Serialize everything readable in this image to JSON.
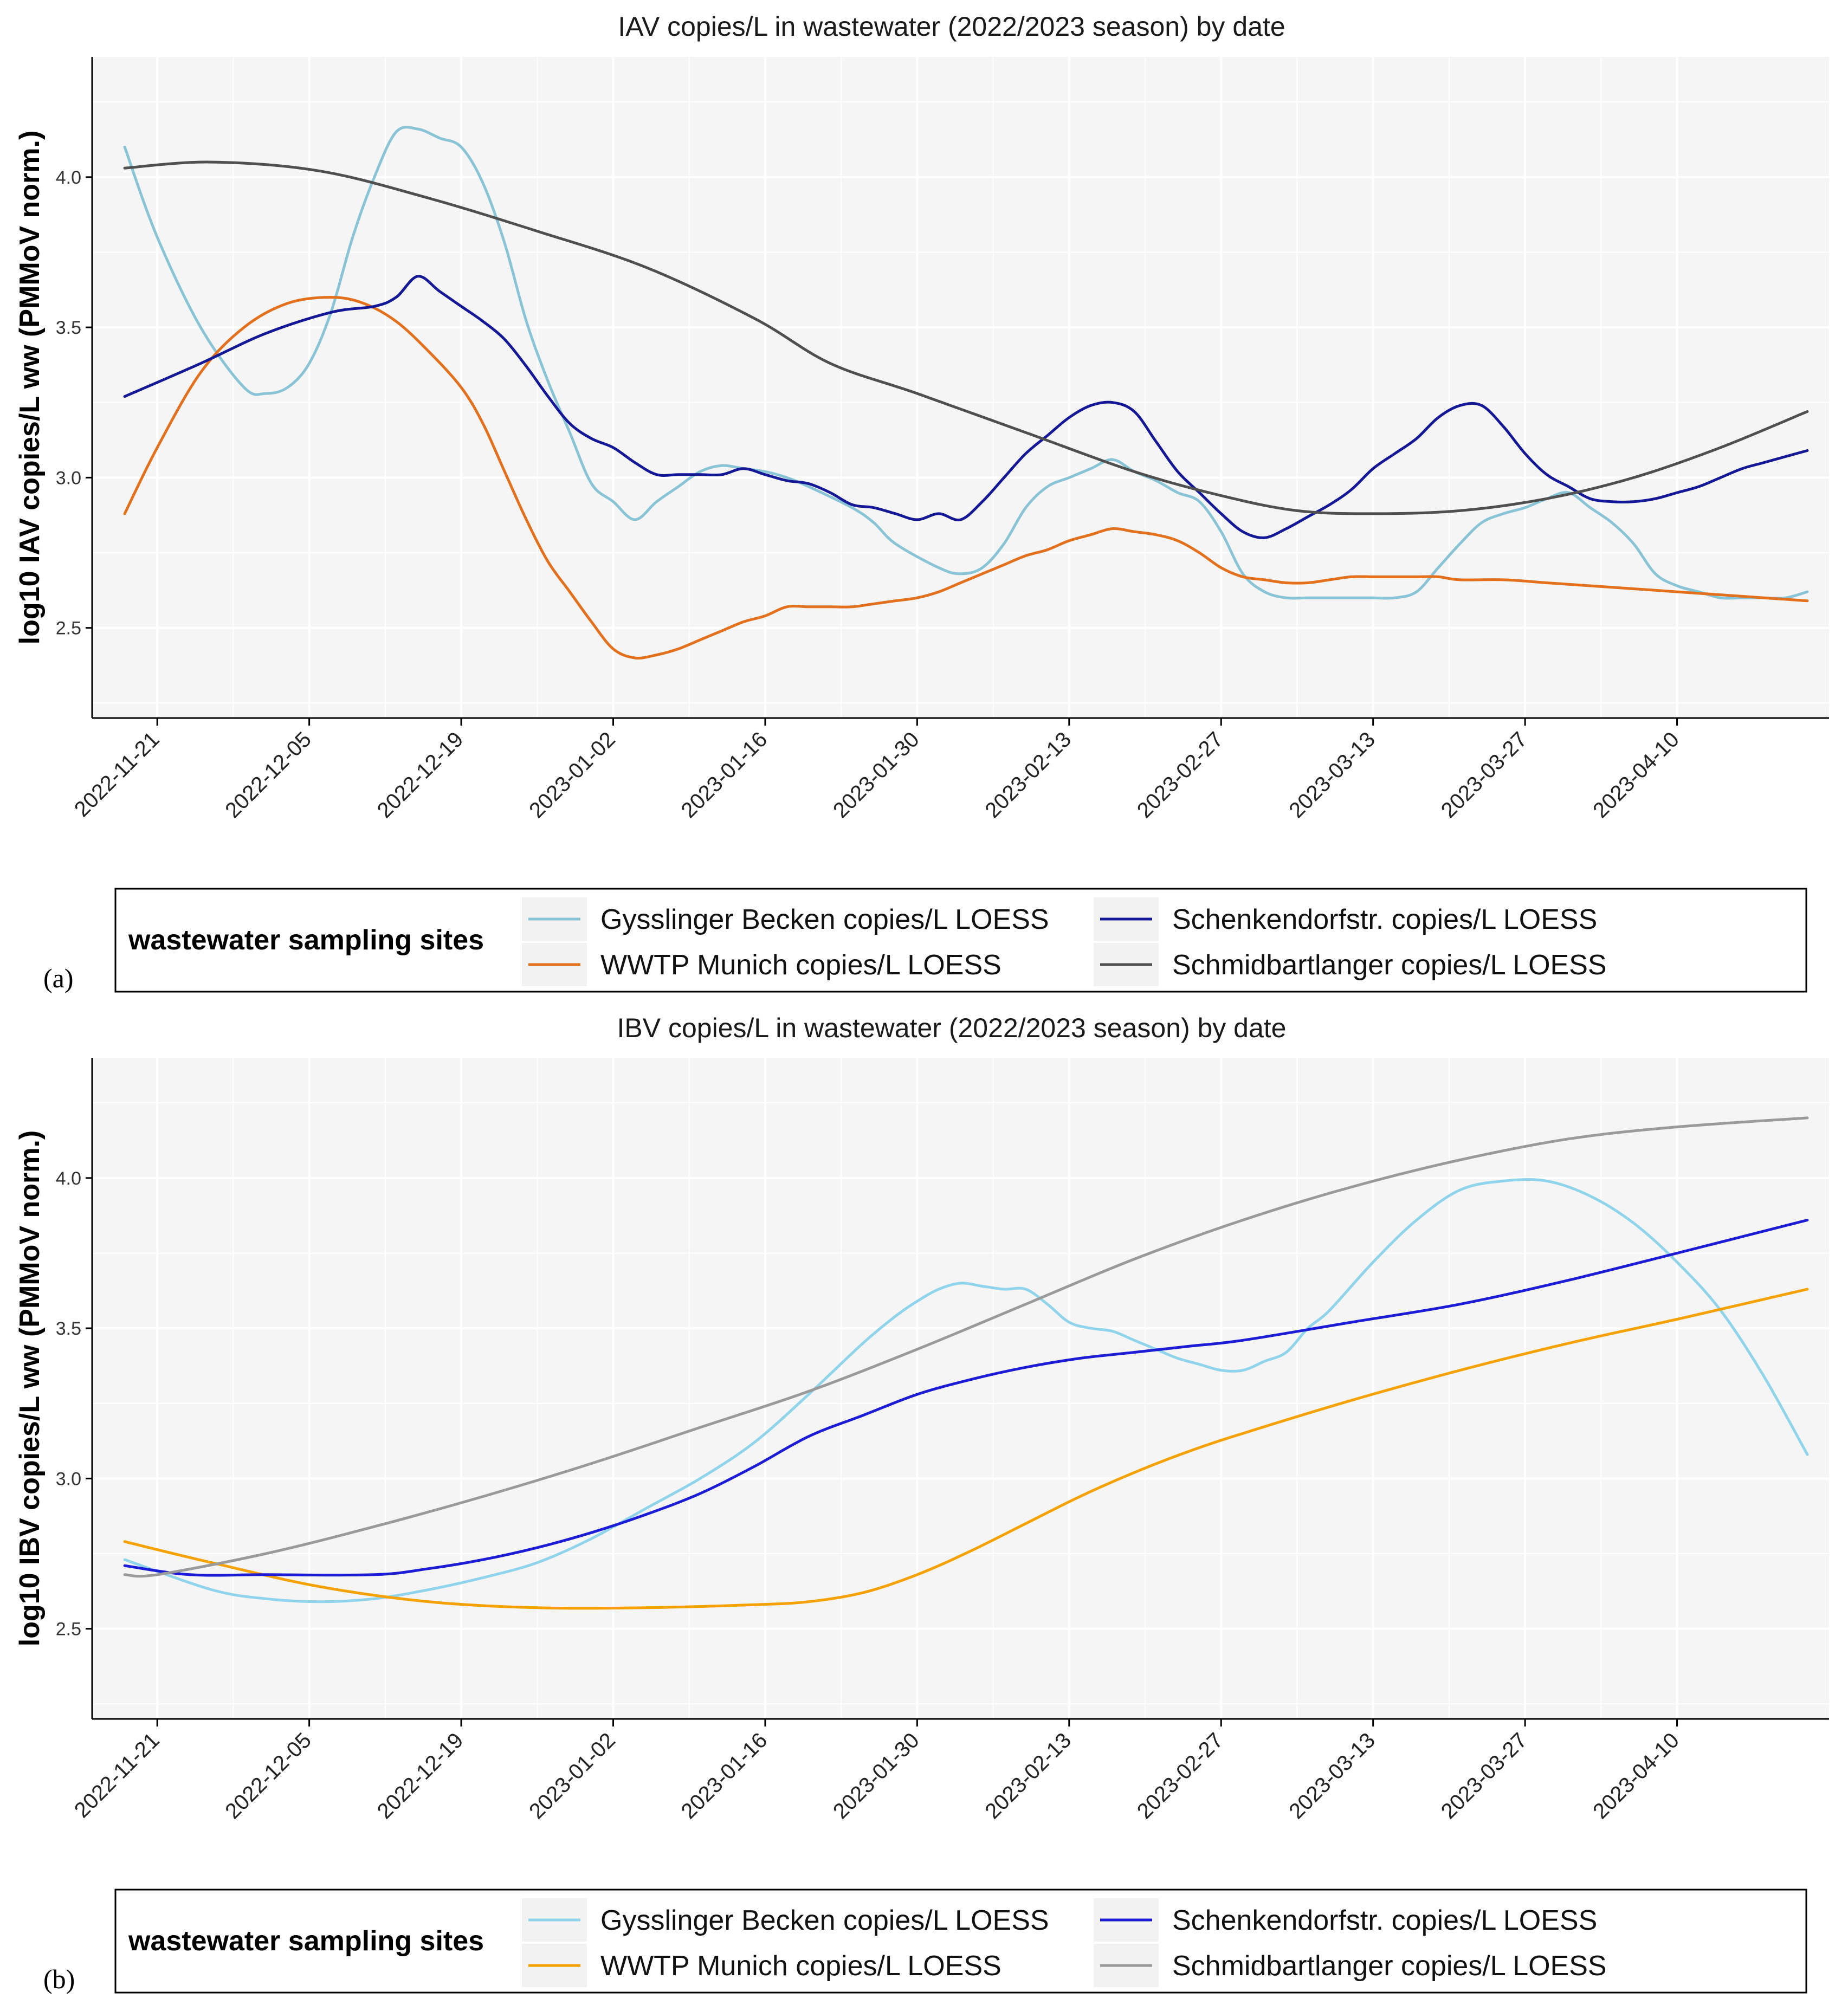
{
  "chart_data": [
    {
      "type": "line",
      "panel_label": "(a)",
      "title": "IAV copies/L in wastewater (2022/2023 season) by date",
      "xlabel": "",
      "ylabel": "log10 IAV copies/L ww (PMMoV norm.)",
      "x_ticks": [
        "2022-11-21",
        "2022-12-05",
        "2022-12-19",
        "2023-01-02",
        "2023-01-16",
        "2023-01-30",
        "2023-02-13",
        "2023-02-27",
        "2023-03-13",
        "2023-03-27",
        "2023-04-10"
      ],
      "y_ticks": [
        "2.5",
        "3.0",
        "3.5",
        "4.0"
      ],
      "xlim_days": [
        -6,
        154
      ],
      "ylim": [
        2.2,
        4.4
      ],
      "grid": true,
      "legend": {
        "title": "wastewater sampling sites",
        "position": "bottom",
        "entries": [
          {
            "name": "Gysslinger Becken copies/L LOESS",
            "color": "#89c4d6"
          },
          {
            "name": "Schenkendorfstr. copies/L LOESS",
            "color": "#141896"
          },
          {
            "name": "WWTP Munich copies/L LOESS",
            "color": "#e2701c"
          },
          {
            "name": "Schmidbartlanger copies/L LOESS",
            "color": "#4f4f4f"
          }
        ]
      },
      "series": [
        {
          "name": "Gysslinger Becken copies/L LOESS",
          "color": "#89c4d6",
          "x": [
            -3,
            0,
            4,
            8,
            10,
            12,
            14,
            16,
            18,
            20,
            22,
            24,
            26,
            28,
            30,
            32,
            34,
            36,
            38,
            40,
            42,
            44,
            46,
            48,
            50,
            52,
            54,
            56,
            58,
            60,
            64,
            66,
            68,
            72,
            74,
            76,
            78,
            80,
            82,
            84,
            86,
            88,
            90,
            92,
            94,
            96,
            98,
            100,
            102,
            104,
            106,
            108,
            110,
            112,
            114,
            116,
            118,
            120,
            122,
            124,
            126,
            128,
            130,
            132,
            134,
            136,
            138,
            140,
            142,
            144,
            146,
            148,
            150,
            152
          ],
          "y": [
            4.1,
            3.8,
            3.5,
            3.3,
            3.28,
            3.3,
            3.38,
            3.55,
            3.8,
            4.0,
            4.15,
            4.16,
            4.13,
            4.1,
            3.98,
            3.78,
            3.52,
            3.32,
            3.15,
            2.98,
            2.92,
            2.86,
            2.92,
            2.97,
            3.02,
            3.04,
            3.03,
            3.02,
            3.0,
            2.97,
            2.9,
            2.85,
            2.78,
            2.7,
            2.68,
            2.7,
            2.78,
            2.9,
            2.97,
            3.0,
            3.03,
            3.06,
            3.02,
            2.99,
            2.95,
            2.92,
            2.82,
            2.68,
            2.62,
            2.6,
            2.6,
            2.6,
            2.6,
            2.6,
            2.6,
            2.62,
            2.7,
            2.78,
            2.85,
            2.88,
            2.9,
            2.93,
            2.95,
            2.9,
            2.85,
            2.78,
            2.68,
            2.64,
            2.62,
            2.6,
            2.6,
            2.6,
            2.6,
            2.62
          ]
        },
        {
          "name": "WWTP Munich copies/L LOESS",
          "color": "#e2701c",
          "x": [
            -3,
            0,
            4,
            8,
            12,
            16,
            19,
            22,
            25,
            28,
            30,
            32,
            34,
            36,
            38,
            40,
            42,
            44,
            46,
            48,
            50,
            52,
            54,
            56,
            58,
            60,
            62,
            64,
            66,
            68,
            70,
            72,
            74,
            76,
            78,
            80,
            82,
            84,
            86,
            88,
            90,
            92,
            94,
            96,
            98,
            100,
            102,
            104,
            106,
            108,
            110,
            112,
            114,
            116,
            118,
            120,
            124,
            128,
            132,
            136,
            140,
            144,
            148,
            152
          ],
          "y": [
            2.88,
            3.1,
            3.35,
            3.5,
            3.58,
            3.6,
            3.58,
            3.52,
            3.42,
            3.3,
            3.18,
            3.02,
            2.86,
            2.72,
            2.62,
            2.52,
            2.43,
            2.4,
            2.41,
            2.43,
            2.46,
            2.49,
            2.52,
            2.54,
            2.57,
            2.57,
            2.57,
            2.57,
            2.58,
            2.59,
            2.6,
            2.62,
            2.65,
            2.68,
            2.71,
            2.74,
            2.76,
            2.79,
            2.81,
            2.83,
            2.82,
            2.81,
            2.79,
            2.75,
            2.7,
            2.67,
            2.66,
            2.65,
            2.65,
            2.66,
            2.67,
            2.67,
            2.67,
            2.67,
            2.67,
            2.66,
            2.66,
            2.65,
            2.64,
            2.63,
            2.62,
            2.61,
            2.6,
            2.59
          ]
        },
        {
          "name": "Schenkendorfstr. copies/L LOESS",
          "color": "#141896",
          "x": [
            -3,
            4,
            10,
            16,
            20,
            22,
            24,
            26,
            28,
            30,
            32,
            34,
            36,
            38,
            40,
            42,
            44,
            46,
            48,
            50,
            52,
            54,
            56,
            58,
            60,
            62,
            64,
            66,
            68,
            70,
            72,
            74,
            76,
            78,
            80,
            82,
            84,
            86,
            88,
            90,
            92,
            94,
            96,
            98,
            100,
            102,
            104,
            106,
            108,
            110,
            112,
            114,
            116,
            118,
            120,
            122,
            124,
            126,
            128,
            130,
            132,
            134,
            136,
            138,
            140,
            142,
            144,
            146,
            148,
            150,
            152
          ],
          "y": [
            3.27,
            3.38,
            3.48,
            3.55,
            3.57,
            3.6,
            3.67,
            3.62,
            3.57,
            3.52,
            3.46,
            3.37,
            3.27,
            3.18,
            3.13,
            3.1,
            3.05,
            3.01,
            3.01,
            3.01,
            3.01,
            3.03,
            3.01,
            2.99,
            2.98,
            2.95,
            2.91,
            2.9,
            2.88,
            2.86,
            2.88,
            2.86,
            2.92,
            3.0,
            3.08,
            3.14,
            3.2,
            3.24,
            3.25,
            3.22,
            3.12,
            3.02,
            2.95,
            2.88,
            2.82,
            2.8,
            2.83,
            2.87,
            2.91,
            2.96,
            3.03,
            3.08,
            3.13,
            3.2,
            3.24,
            3.24,
            3.17,
            3.08,
            3.01,
            2.97,
            2.93,
            2.92,
            2.92,
            2.93,
            2.95,
            2.97,
            3.0,
            3.03,
            3.05,
            3.07,
            3.09
          ]
        },
        {
          "name": "Schmidbartlanger copies/L LOESS",
          "color": "#4f4f4f",
          "x": [
            -3,
            5,
            15,
            25,
            35,
            45,
            55,
            62,
            70,
            80,
            90,
            98,
            105,
            112,
            120,
            128,
            136,
            144,
            152
          ],
          "y": [
            4.03,
            4.05,
            4.02,
            3.93,
            3.82,
            3.7,
            3.53,
            3.38,
            3.28,
            3.15,
            3.02,
            2.94,
            2.89,
            2.88,
            2.89,
            2.93,
            3.0,
            3.1,
            3.22
          ]
        }
      ]
    },
    {
      "type": "line",
      "panel_label": "(b)",
      "title": "IBV copies/L in wastewater (2022/2023 season) by date",
      "xlabel": "",
      "ylabel": "log10 IBV copies/L ww (PMMoV norm.)",
      "x_ticks": [
        "2022-11-21",
        "2022-12-05",
        "2022-12-19",
        "2023-01-02",
        "2023-01-16",
        "2023-01-30",
        "2023-02-13",
        "2023-02-27",
        "2023-03-13",
        "2023-03-27",
        "2023-04-10"
      ],
      "y_ticks": [
        "2.5",
        "3.0",
        "3.5",
        "4.0"
      ],
      "xlim_days": [
        -6,
        154
      ],
      "ylim": [
        2.2,
        4.4
      ],
      "grid": true,
      "legend": {
        "title": "wastewater sampling sites",
        "position": "bottom",
        "entries": [
          {
            "name": "Gysslinger Becken copies/L LOESS",
            "color": "#8fd4ea"
          },
          {
            "name": "Schenkendorfstr. copies/L LOESS",
            "color": "#1c1cd6"
          },
          {
            "name": "WWTP Munich copies/L LOESS",
            "color": "#f5a200"
          },
          {
            "name": "Schmidbartlanger copies/L LOESS",
            "color": "#9a9a9a"
          }
        ]
      },
      "series": [
        {
          "name": "Gysslinger Becken copies/L LOESS",
          "color": "#8fd4ea",
          "x": [
            -3,
            5,
            10,
            15,
            20,
            25,
            30,
            35,
            40,
            45,
            50,
            55,
            60,
            65,
            68,
            70,
            72,
            74,
            76,
            78,
            80,
            82,
            84,
            86,
            88,
            90,
            92,
            94,
            96,
            98,
            100,
            102,
            104,
            106,
            108,
            112,
            116,
            120,
            124,
            128,
            132,
            136,
            140,
            144,
            148,
            152
          ],
          "y": [
            2.73,
            2.63,
            2.6,
            2.59,
            2.6,
            2.63,
            2.67,
            2.72,
            2.8,
            2.9,
            3.0,
            3.12,
            3.28,
            3.45,
            3.54,
            3.59,
            3.63,
            3.65,
            3.64,
            3.63,
            3.63,
            3.58,
            3.52,
            3.5,
            3.49,
            3.46,
            3.43,
            3.4,
            3.38,
            3.36,
            3.36,
            3.39,
            3.42,
            3.5,
            3.56,
            3.72,
            3.86,
            3.96,
            3.99,
            3.99,
            3.94,
            3.85,
            3.72,
            3.56,
            3.34,
            3.08
          ]
        },
        {
          "name": "WWTP Munich copies/L LOESS",
          "color": "#f5a200",
          "x": [
            -3,
            5,
            15,
            25,
            35,
            45,
            55,
            60,
            65,
            70,
            75,
            80,
            85,
            90,
            95,
            100,
            110,
            120,
            130,
            140,
            152
          ],
          "y": [
            2.79,
            2.72,
            2.64,
            2.59,
            2.57,
            2.57,
            2.58,
            2.59,
            2.62,
            2.68,
            2.76,
            2.85,
            2.94,
            3.02,
            3.09,
            3.15,
            3.26,
            3.36,
            3.45,
            3.53,
            3.63
          ]
        },
        {
          "name": "Schenkendorfstr. copies/L LOESS",
          "color": "#1c1cd6",
          "x": [
            -3,
            3,
            10,
            20,
            25,
            30,
            35,
            40,
            45,
            50,
            55,
            60,
            65,
            70,
            75,
            80,
            85,
            90,
            95,
            100,
            110,
            120,
            130,
            140,
            152
          ],
          "y": [
            2.71,
            2.68,
            2.68,
            2.68,
            2.7,
            2.73,
            2.77,
            2.82,
            2.88,
            2.95,
            3.04,
            3.14,
            3.21,
            3.28,
            3.33,
            3.37,
            3.4,
            3.42,
            3.44,
            3.46,
            3.52,
            3.58,
            3.66,
            3.75,
            3.86
          ]
        },
        {
          "name": "Schmidbartlanger copies/L LOESS",
          "color": "#9a9a9a",
          "x": [
            -3,
            0,
            10,
            20,
            30,
            40,
            50,
            60,
            70,
            80,
            90,
            100,
            110,
            120,
            130,
            140,
            152
          ],
          "y": [
            2.68,
            2.68,
            2.75,
            2.84,
            2.94,
            3.05,
            3.17,
            3.29,
            3.43,
            3.58,
            3.73,
            3.86,
            3.97,
            4.06,
            4.13,
            4.17,
            4.2
          ]
        }
      ]
    }
  ]
}
